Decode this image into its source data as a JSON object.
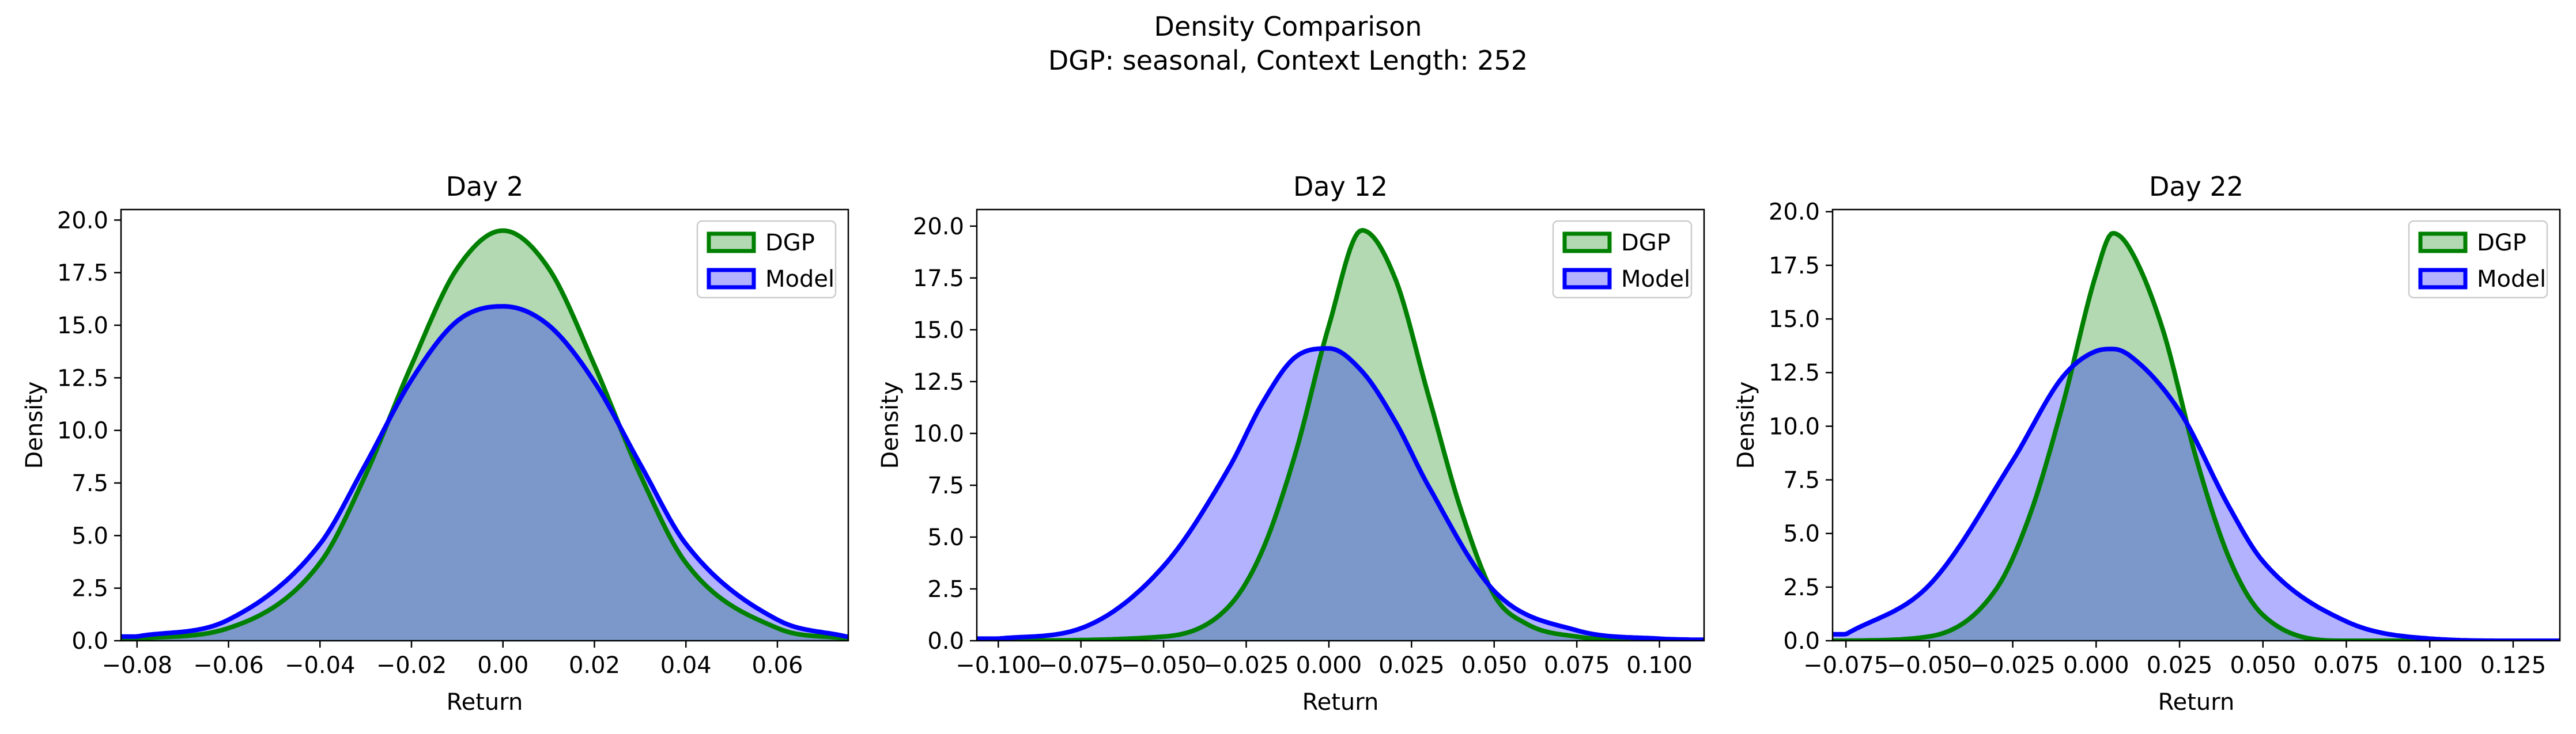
{
  "figure": {
    "title_line1": "Density Comparison",
    "title_line2": "DGP: seasonal, Context Length: 252"
  },
  "legend_entries": [
    {
      "name": "DGP",
      "edge": "#008000",
      "fill": "#008000",
      "fill_alpha": 0.3
    },
    {
      "name": "Model",
      "edge": "#0000ff",
      "fill": "#0000ff",
      "fill_alpha": 0.3
    }
  ],
  "chart_data": [
    {
      "type": "area",
      "title": "Day 2",
      "xlabel": "Return",
      "ylabel": "Density",
      "xlim": [
        -0.0835,
        0.0755
      ],
      "ylim": [
        0,
        20.5
      ],
      "xticks": [
        -0.08,
        -0.06,
        -0.04,
        -0.02,
        0.0,
        0.02,
        0.04,
        0.06
      ],
      "xtick_labels": [
        "−0.08",
        "−0.06",
        "−0.04",
        "−0.02",
        "0.00",
        "0.02",
        "0.04",
        "0.06"
      ],
      "yticks": [
        0,
        2.5,
        5,
        7.5,
        10,
        12.5,
        15,
        17.5,
        20
      ],
      "ytick_labels": [
        "0.0",
        "2.5",
        "5.0",
        "7.5",
        "10.0",
        "12.5",
        "15.0",
        "17.5",
        "20.0"
      ],
      "legend_position": "top-right",
      "grid": false,
      "series": [
        {
          "name": "DGP",
          "x": [
            -0.08,
            -0.06,
            -0.04,
            -0.03,
            -0.02,
            -0.01,
            0.0,
            0.01,
            0.02,
            0.03,
            0.04,
            0.06,
            0.075
          ],
          "values": [
            0.1,
            0.6,
            3.7,
            7.9,
            13.1,
            17.7,
            19.5,
            17.7,
            13.1,
            7.9,
            3.7,
            0.6,
            0.1
          ]
        },
        {
          "name": "Model",
          "x": [
            -0.08,
            -0.06,
            -0.04,
            -0.03,
            -0.02,
            -0.01,
            0.0,
            0.01,
            0.02,
            0.03,
            0.04,
            0.06,
            0.075
          ],
          "values": [
            0.2,
            1.0,
            4.6,
            8.4,
            12.4,
            15.2,
            15.9,
            15.0,
            12.3,
            8.4,
            4.6,
            1.0,
            0.2
          ]
        }
      ]
    },
    {
      "type": "area",
      "title": "Day 12",
      "xlabel": "Return",
      "ylabel": "Density",
      "xlim": [
        -0.1065,
        0.1135
      ],
      "ylim": [
        0,
        20.8
      ],
      "xticks": [
        -0.1,
        -0.075,
        -0.05,
        -0.025,
        0.0,
        0.025,
        0.05,
        0.075,
        0.1
      ],
      "xtick_labels": [
        "−0.100",
        "−0.075",
        "−0.050",
        "−0.025",
        "0.000",
        "0.025",
        "0.050",
        "0.075",
        "0.100"
      ],
      "yticks": [
        0,
        2.5,
        5,
        7.5,
        10,
        12.5,
        15,
        17.5,
        20
      ],
      "ytick_labels": [
        "0.0",
        "2.5",
        "5.0",
        "7.5",
        "10.0",
        "12.5",
        "15.0",
        "17.5",
        "20.0"
      ],
      "legend_position": "top-right",
      "grid": false,
      "series": [
        {
          "name": "DGP",
          "x": [
            -0.1,
            -0.05,
            -0.03,
            -0.02,
            -0.01,
            0.0,
            0.01,
            0.02,
            0.03,
            0.04,
            0.05,
            0.06,
            0.075,
            0.1,
            0.11
          ],
          "values": [
            0.0,
            0.2,
            1.7,
            4.4,
            9.1,
            15.2,
            19.8,
            17.5,
            11.9,
            6.3,
            2.2,
            0.8,
            0.2,
            0.0,
            0.0
          ]
        },
        {
          "name": "Model",
          "x": [
            -0.1,
            -0.075,
            -0.05,
            -0.03,
            -0.02,
            -0.01,
            0.0,
            0.01,
            0.02,
            0.03,
            0.05,
            0.075,
            0.1,
            0.11
          ],
          "values": [
            0.1,
            0.6,
            3.6,
            8.4,
            11.5,
            13.7,
            14.1,
            13.0,
            10.6,
            7.5,
            2.4,
            0.5,
            0.1,
            0.05
          ]
        }
      ]
    },
    {
      "type": "area",
      "title": "Day 22",
      "xlabel": "Return",
      "ylabel": "Density",
      "xlim": [
        -0.079,
        0.139
      ],
      "ylim": [
        0,
        20.1
      ],
      "xticks": [
        -0.075,
        -0.05,
        -0.025,
        0.0,
        0.025,
        0.05,
        0.075,
        0.1,
        0.125
      ],
      "xtick_labels": [
        "−0.075",
        "−0.050",
        "−0.025",
        "0.000",
        "0.025",
        "0.050",
        "0.075",
        "0.100",
        "0.125"
      ],
      "yticks": [
        0,
        2.5,
        5,
        7.5,
        10,
        12.5,
        15,
        17.5,
        20
      ],
      "ytick_labels": [
        "0.0",
        "2.5",
        "5.0",
        "7.5",
        "10.0",
        "12.5",
        "15.0",
        "17.5",
        "20.0"
      ],
      "legend_position": "top-right",
      "grid": false,
      "series": [
        {
          "name": "DGP",
          "x": [
            -0.075,
            -0.05,
            -0.03,
            -0.02,
            -0.01,
            0.0,
            0.005,
            0.01,
            0.02,
            0.03,
            0.04,
            0.05,
            0.075,
            0.1,
            0.125,
            0.135
          ],
          "values": [
            0.0,
            0.2,
            2.4,
            5.8,
            11.0,
            17.1,
            19.0,
            18.3,
            14.5,
            8.5,
            3.8,
            1.2,
            0.0,
            0.0,
            0.0,
            0.0
          ]
        },
        {
          "name": "Model",
          "x": [
            -0.075,
            -0.05,
            -0.025,
            -0.01,
            0.0,
            0.005,
            0.01,
            0.025,
            0.04,
            0.05,
            0.075,
            0.1,
            0.125,
            0.135
          ],
          "values": [
            0.3,
            2.6,
            8.4,
            12.3,
            13.5,
            13.6,
            13.3,
            10.7,
            6.2,
            3.7,
            0.9,
            0.1,
            0.0,
            0.0
          ]
        }
      ]
    }
  ]
}
